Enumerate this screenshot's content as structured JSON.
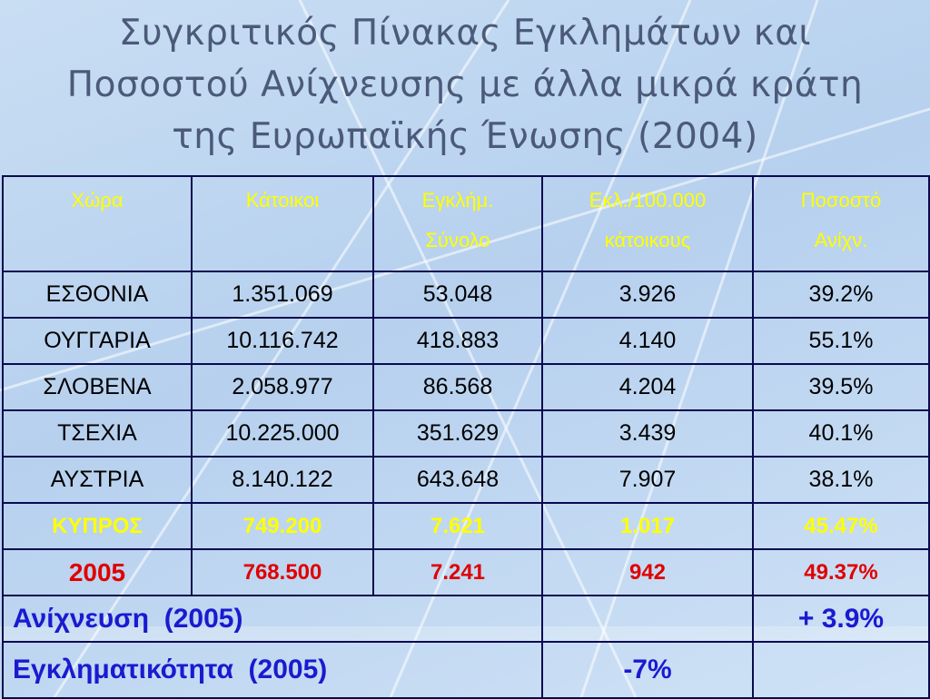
{
  "title": {
    "lines": [
      "Συγκριτικός Πίνακας Εγκλημάτων και",
      "Ποσοστού Ανίχνευσης με άλλα μικρά κράτη",
      "της Ευρωπαϊκής Ένωσης (2004)"
    ]
  },
  "table": {
    "header": [
      "Χώρα",
      "Κάτοικοι",
      "Εγκλήμ.\nΣύνολο",
      "Εκλ./100.000\nκάτοικους",
      "Ποσοστό\nΑνίχν."
    ],
    "rows": [
      [
        "ΕΣΘΟΝΙΑ",
        "1.351.069",
        "53.048",
        "3.926",
        "39.2%"
      ],
      [
        "ΟΥΓΓΑΡΙΑ",
        "10.116.742",
        "418.883",
        "4.140",
        "55.1%"
      ],
      [
        "ΣΛΟΒΕΝΑ",
        "2.058.977",
        "86.568",
        "4.204",
        "39.5%"
      ],
      [
        "ΤΣΕΧΙΑ",
        "10.225.000",
        "351.629",
        "3.439",
        "40.1%"
      ],
      [
        "ΑΥΣΤΡΙΑ",
        "8.140.122",
        "643.648",
        "7.907",
        "38.1%"
      ],
      [
        "ΚΥΠΡΟΣ",
        "749.200",
        "7.621",
        "1.017",
        "45.47%"
      ],
      [
        "2005",
        "768.500",
        "7.241",
        "942",
        "49.37%"
      ]
    ],
    "footer": [
      {
        "label": "Ανίχνευση  (2005)",
        "value": "+ 3.9%"
      },
      {
        "label": "Εγκληματικότητα  (2005)",
        "value": "-7%"
      }
    ]
  }
}
